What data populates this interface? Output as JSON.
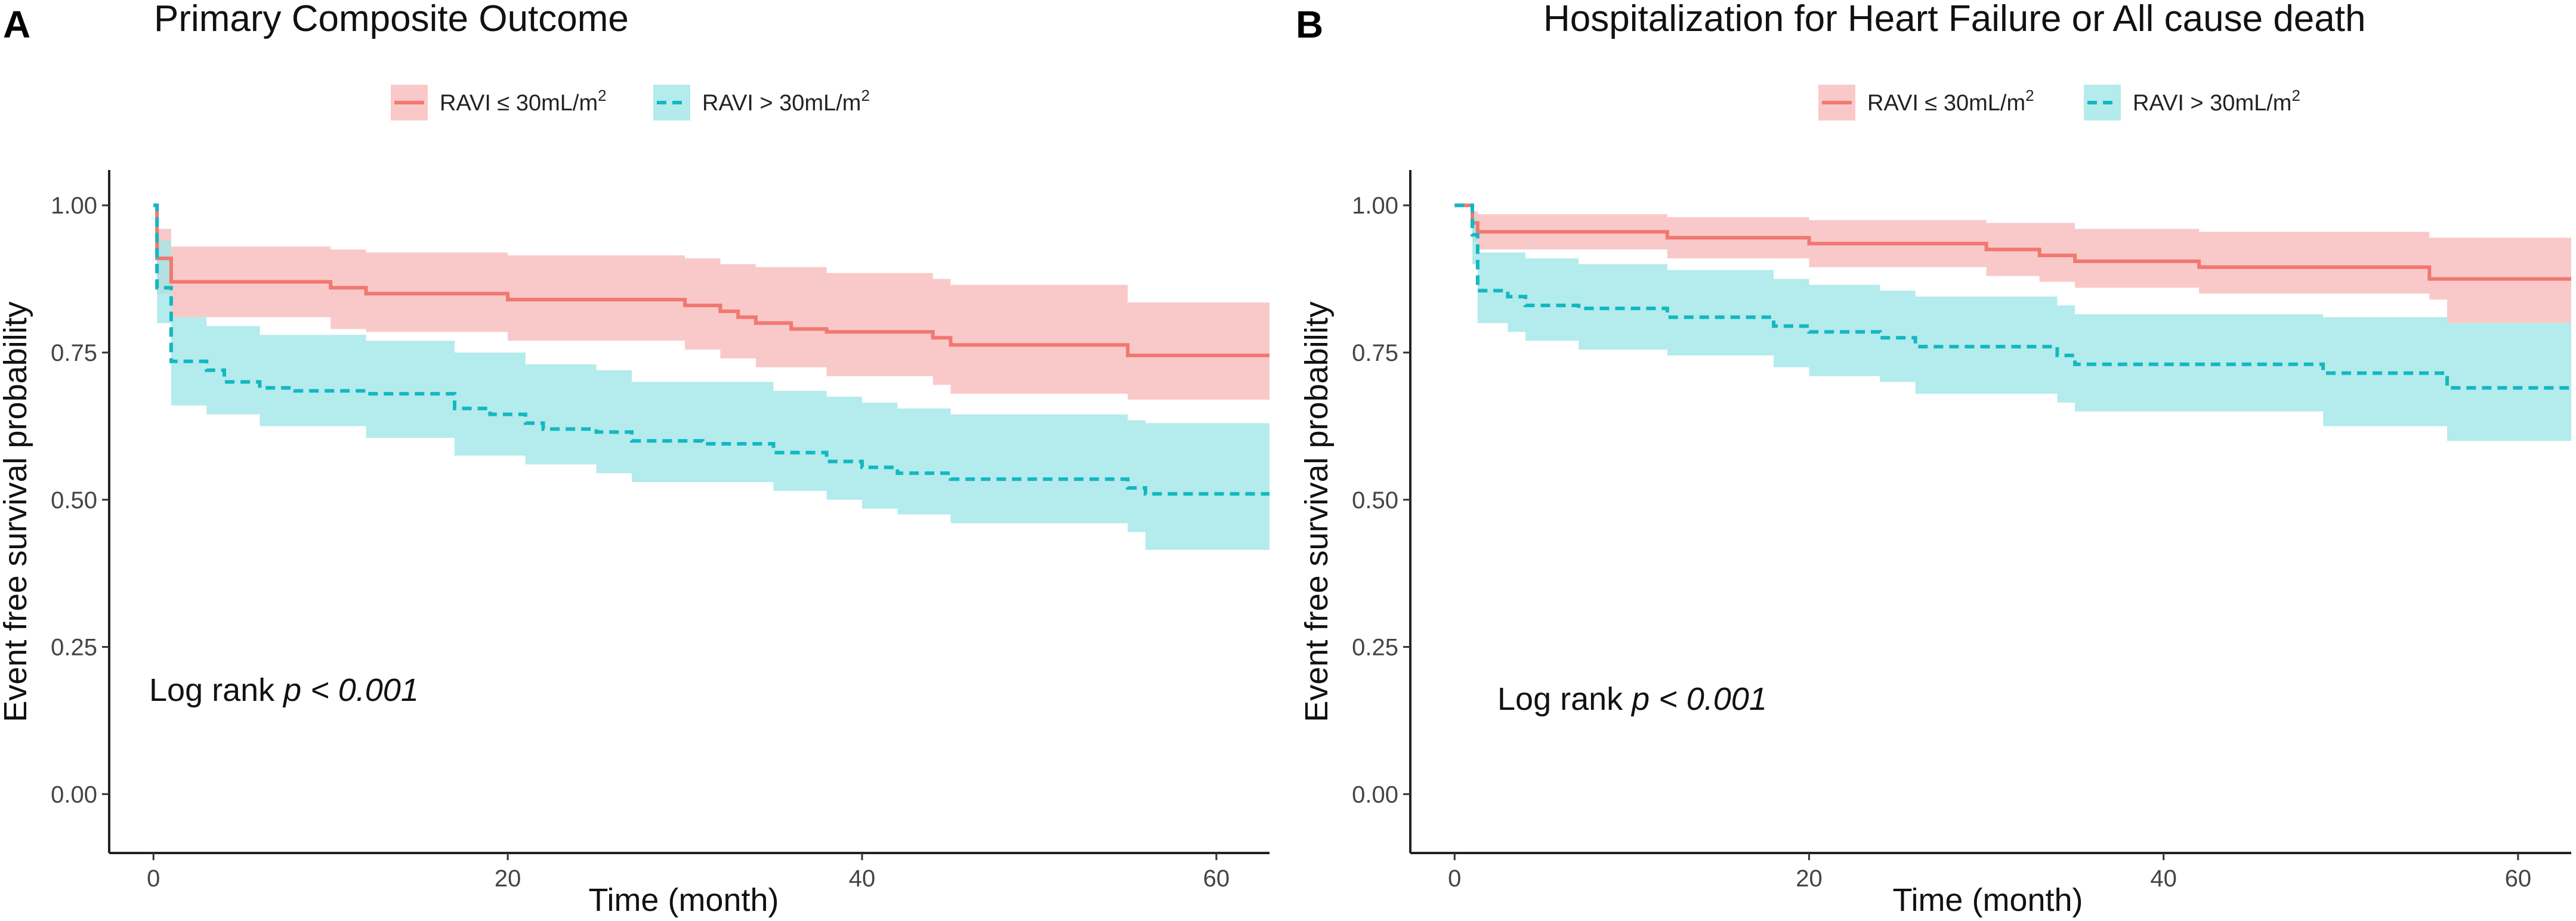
{
  "colors": {
    "group1": "#F07870",
    "group1_band": "#F8BDBD",
    "group2": "#12B8C2",
    "group2_band": "#A4E6E8"
  },
  "chart_data": [
    {
      "type": "line",
      "panel": "A",
      "title": "Primary Composite Outcome",
      "xlabel": "Time (month)",
      "ylabel": "Event free survival probability",
      "xlim": [
        -2.5,
        63
      ],
      "ylim": [
        -0.1,
        1.06
      ],
      "xticks": [
        0,
        20,
        40,
        60
      ],
      "yticks": [
        0.0,
        0.25,
        0.5,
        0.75,
        1.0
      ],
      "ytick_labels": [
        "0.00",
        "0.25",
        "0.50",
        "0.75",
        "1.00"
      ],
      "xtick_labels": [
        "0",
        "20",
        "40",
        "60"
      ],
      "annotation": {
        "prefix": "Log rank ",
        "stat": "p < 0.001"
      },
      "legend": {
        "position": "top-center",
        "items": [
          {
            "label": "RAVI ≤ 30mL/m",
            "sup": "2",
            "style": "solid"
          },
          {
            "label": "RAVI > 30mL/m",
            "sup": "2",
            "style": "dashed"
          }
        ]
      },
      "series": [
        {
          "name": "RAVI ≤ 30mL/m2",
          "style": "solid",
          "steps": [
            [
              0,
              1.0
            ],
            [
              0.2,
              0.91
            ],
            [
              1,
              0.87
            ],
            [
              10,
              0.86
            ],
            [
              12,
              0.85
            ],
            [
              20,
              0.84
            ],
            [
              30,
              0.83
            ],
            [
              32,
              0.82
            ],
            [
              33,
              0.81
            ],
            [
              34,
              0.8
            ],
            [
              36,
              0.79
            ],
            [
              38,
              0.785
            ],
            [
              44,
              0.775
            ],
            [
              45,
              0.763
            ],
            [
              55,
              0.745
            ],
            [
              63,
              0.745
            ]
          ],
          "upper": [
            [
              0,
              1.0
            ],
            [
              0.2,
              0.96
            ],
            [
              1,
              0.93
            ],
            [
              10,
              0.925
            ],
            [
              12,
              0.92
            ],
            [
              20,
              0.915
            ],
            [
              30,
              0.91
            ],
            [
              32,
              0.9
            ],
            [
              34,
              0.895
            ],
            [
              38,
              0.885
            ],
            [
              44,
              0.875
            ],
            [
              45,
              0.865
            ],
            [
              55,
              0.835
            ],
            [
              63,
              0.835
            ]
          ],
          "lower": [
            [
              0,
              1.0
            ],
            [
              0.2,
              0.85
            ],
            [
              1,
              0.81
            ],
            [
              10,
              0.79
            ],
            [
              12,
              0.785
            ],
            [
              20,
              0.77
            ],
            [
              30,
              0.755
            ],
            [
              32,
              0.74
            ],
            [
              34,
              0.725
            ],
            [
              38,
              0.71
            ],
            [
              44,
              0.695
            ],
            [
              45,
              0.68
            ],
            [
              55,
              0.67
            ],
            [
              63,
              0.67
            ]
          ]
        },
        {
          "name": "RAVI > 30mL/m2",
          "style": "dashed",
          "steps": [
            [
              0,
              1.0
            ],
            [
              0.2,
              0.86
            ],
            [
              1,
              0.735
            ],
            [
              3,
              0.72
            ],
            [
              4,
              0.7
            ],
            [
              6,
              0.69
            ],
            [
              8,
              0.685
            ],
            [
              12,
              0.68
            ],
            [
              17,
              0.655
            ],
            [
              19,
              0.645
            ],
            [
              21,
              0.63
            ],
            [
              22,
              0.62
            ],
            [
              25,
              0.615
            ],
            [
              27,
              0.6
            ],
            [
              31,
              0.595
            ],
            [
              35,
              0.58
            ],
            [
              38,
              0.565
            ],
            [
              40,
              0.555
            ],
            [
              42,
              0.545
            ],
            [
              45,
              0.535
            ],
            [
              55,
              0.52
            ],
            [
              56,
              0.51
            ],
            [
              63,
              0.51
            ]
          ],
          "upper": [
            [
              0,
              1.0
            ],
            [
              0.2,
              0.94
            ],
            [
              1,
              0.81
            ],
            [
              3,
              0.795
            ],
            [
              6,
              0.78
            ],
            [
              12,
              0.77
            ],
            [
              17,
              0.75
            ],
            [
              21,
              0.73
            ],
            [
              25,
              0.72
            ],
            [
              27,
              0.7
            ],
            [
              35,
              0.685
            ],
            [
              38,
              0.675
            ],
            [
              40,
              0.665
            ],
            [
              42,
              0.655
            ],
            [
              45,
              0.645
            ],
            [
              55,
              0.635
            ],
            [
              56,
              0.63
            ],
            [
              63,
              0.63
            ]
          ],
          "lower": [
            [
              0,
              1.0
            ],
            [
              0.2,
              0.8
            ],
            [
              1,
              0.66
            ],
            [
              3,
              0.645
            ],
            [
              6,
              0.625
            ],
            [
              12,
              0.605
            ],
            [
              17,
              0.575
            ],
            [
              21,
              0.56
            ],
            [
              25,
              0.545
            ],
            [
              27,
              0.53
            ],
            [
              35,
              0.515
            ],
            [
              38,
              0.5
            ],
            [
              40,
              0.485
            ],
            [
              42,
              0.475
            ],
            [
              45,
              0.46
            ],
            [
              55,
              0.445
            ],
            [
              56,
              0.415
            ],
            [
              63,
              0.415
            ]
          ]
        }
      ]
    },
    {
      "type": "line",
      "panel": "B",
      "title": "Hospitalization for Heart Failure or All cause death",
      "xlabel": "Time (month)",
      "ylabel": "Event free survival probability",
      "xlim": [
        -2.5,
        63
      ],
      "ylim": [
        -0.1,
        1.06
      ],
      "xticks": [
        0,
        20,
        40,
        60
      ],
      "yticks": [
        0.0,
        0.25,
        0.5,
        0.75,
        1.0
      ],
      "ytick_labels": [
        "0.00",
        "0.25",
        "0.50",
        "0.75",
        "1.00"
      ],
      "xtick_labels": [
        "0",
        "20",
        "40",
        "60"
      ],
      "annotation": {
        "prefix": "Log rank ",
        "stat": "p < 0.001"
      },
      "legend": {
        "position": "top-center",
        "items": [
          {
            "label": "RAVI ≤ 30mL/m",
            "sup": "2",
            "style": "solid"
          },
          {
            "label": "RAVI > 30mL/m",
            "sup": "2",
            "style": "dashed"
          }
        ]
      },
      "series": [
        {
          "name": "RAVI ≤ 30mL/m2",
          "style": "solid",
          "steps": [
            [
              0,
              1.0
            ],
            [
              1,
              0.97
            ],
            [
              1.3,
              0.955
            ],
            [
              12,
              0.945
            ],
            [
              20,
              0.935
            ],
            [
              30,
              0.925
            ],
            [
              33,
              0.915
            ],
            [
              35,
              0.905
            ],
            [
              42,
              0.895
            ],
            [
              55,
              0.875
            ],
            [
              63,
              0.875
            ]
          ],
          "upper": [
            [
              0,
              1.0
            ],
            [
              1,
              0.99
            ],
            [
              1.3,
              0.985
            ],
            [
              12,
              0.98
            ],
            [
              20,
              0.975
            ],
            [
              30,
              0.97
            ],
            [
              35,
              0.96
            ],
            [
              42,
              0.955
            ],
            [
              55,
              0.945
            ],
            [
              63,
              0.945
            ]
          ],
          "lower": [
            [
              0,
              1.0
            ],
            [
              1,
              0.94
            ],
            [
              1.3,
              0.925
            ],
            [
              12,
              0.91
            ],
            [
              20,
              0.895
            ],
            [
              30,
              0.88
            ],
            [
              33,
              0.87
            ],
            [
              35,
              0.86
            ],
            [
              42,
              0.85
            ],
            [
              55,
              0.84
            ],
            [
              56,
              0.8
            ],
            [
              63,
              0.8
            ]
          ]
        },
        {
          "name": "RAVI > 30mL/m2",
          "style": "dashed",
          "steps": [
            [
              0,
              1.0
            ],
            [
              1,
              0.95
            ],
            [
              1.3,
              0.855
            ],
            [
              3,
              0.845
            ],
            [
              4,
              0.83
            ],
            [
              7,
              0.825
            ],
            [
              12,
              0.81
            ],
            [
              18,
              0.795
            ],
            [
              20,
              0.785
            ],
            [
              24,
              0.775
            ],
            [
              26,
              0.76
            ],
            [
              34,
              0.745
            ],
            [
              35,
              0.73
            ],
            [
              49,
              0.715
            ],
            [
              56,
              0.69
            ],
            [
              63,
              0.69
            ]
          ],
          "upper": [
            [
              0,
              1.0
            ],
            [
              1,
              0.98
            ],
            [
              1.3,
              0.92
            ],
            [
              4,
              0.91
            ],
            [
              7,
              0.9
            ],
            [
              12,
              0.89
            ],
            [
              18,
              0.875
            ],
            [
              20,
              0.865
            ],
            [
              24,
              0.855
            ],
            [
              26,
              0.845
            ],
            [
              34,
              0.83
            ],
            [
              35,
              0.815
            ],
            [
              49,
              0.81
            ],
            [
              56,
              0.8
            ],
            [
              63,
              0.8
            ]
          ],
          "lower": [
            [
              0,
              1.0
            ],
            [
              1,
              0.9
            ],
            [
              1.3,
              0.8
            ],
            [
              3,
              0.785
            ],
            [
              4,
              0.77
            ],
            [
              7,
              0.755
            ],
            [
              12,
              0.745
            ],
            [
              18,
              0.725
            ],
            [
              20,
              0.71
            ],
            [
              24,
              0.7
            ],
            [
              26,
              0.68
            ],
            [
              34,
              0.665
            ],
            [
              35,
              0.65
            ],
            [
              49,
              0.625
            ],
            [
              56,
              0.6
            ],
            [
              63,
              0.6
            ]
          ]
        }
      ]
    }
  ]
}
